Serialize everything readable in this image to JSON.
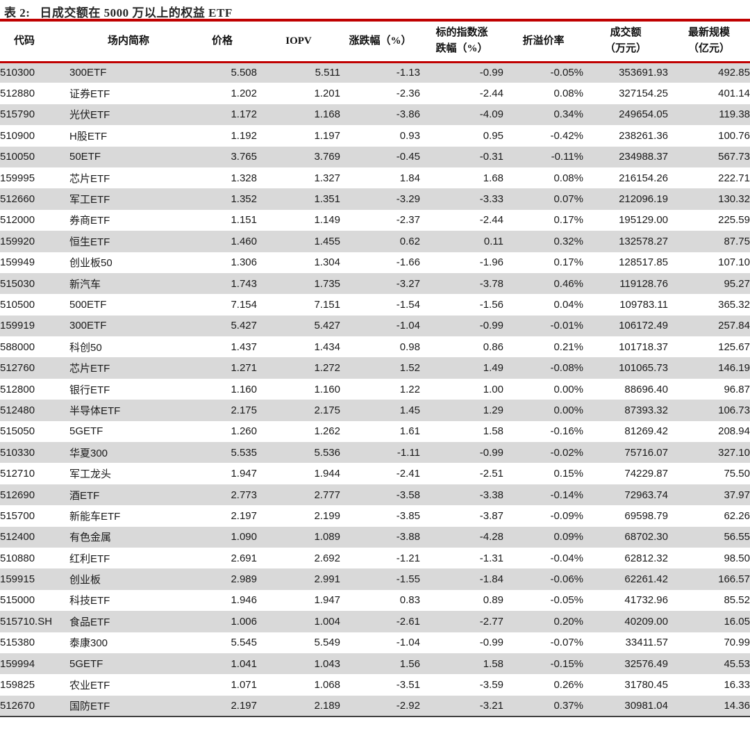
{
  "title": {
    "prefix": "表 2:",
    "text": "日成交额在 5000 万以上的权益 ETF"
  },
  "colors": {
    "accent_red": "#c00000",
    "row_stripe": "#d9d9d9",
    "bottom_rule": "#3f3f3f"
  },
  "table": {
    "columns": [
      {
        "key": "code",
        "align": "left",
        "line1": "代码",
        "line2": ""
      },
      {
        "key": "name",
        "align": "left",
        "line1": "场内简称",
        "line2": ""
      },
      {
        "key": "price",
        "align": "right",
        "line1": "价格",
        "line2": ""
      },
      {
        "key": "iopv",
        "align": "right",
        "line1": "IOPV",
        "line2": ""
      },
      {
        "key": "chg",
        "align": "right",
        "line1": "涨跌幅（%）",
        "line2": ""
      },
      {
        "key": "idx",
        "align": "right",
        "line1": "标的指数涨",
        "line2": "跌幅（%）"
      },
      {
        "key": "prem",
        "align": "right",
        "line1": "折溢价率",
        "line2": ""
      },
      {
        "key": "turn",
        "align": "right",
        "line1": "成交额",
        "line2": "（万元）"
      },
      {
        "key": "aum",
        "align": "right",
        "line1": "最新规模",
        "line2": "（亿元）"
      }
    ],
    "rows": [
      [
        "510300",
        "300ETF",
        "5.508",
        "5.511",
        "-1.13",
        "-0.99",
        "-0.05%",
        "353691.93",
        "492.85"
      ],
      [
        "512880",
        "证券ETF",
        "1.202",
        "1.201",
        "-2.36",
        "-2.44",
        "0.08%",
        "327154.25",
        "401.14"
      ],
      [
        "515790",
        "光伏ETF",
        "1.172",
        "1.168",
        "-3.86",
        "-4.09",
        "0.34%",
        "249654.05",
        "119.38"
      ],
      [
        "510900",
        "H股ETF",
        "1.192",
        "1.197",
        "0.93",
        "0.95",
        "-0.42%",
        "238261.36",
        "100.76"
      ],
      [
        "510050",
        "50ETF",
        "3.765",
        "3.769",
        "-0.45",
        "-0.31",
        "-0.11%",
        "234988.37",
        "567.73"
      ],
      [
        "159995",
        "芯片ETF",
        "1.328",
        "1.327",
        "1.84",
        "1.68",
        "0.08%",
        "216154.26",
        "222.71"
      ],
      [
        "512660",
        "军工ETF",
        "1.352",
        "1.351",
        "-3.29",
        "-3.33",
        "0.07%",
        "212096.19",
        "130.32"
      ],
      [
        "512000",
        "券商ETF",
        "1.151",
        "1.149",
        "-2.37",
        "-2.44",
        "0.17%",
        "195129.00",
        "225.59"
      ],
      [
        "159920",
        "恒生ETF",
        "1.460",
        "1.455",
        "0.62",
        "0.11",
        "0.32%",
        "132578.27",
        "87.75"
      ],
      [
        "159949",
        "创业板50",
        "1.306",
        "1.304",
        "-1.66",
        "-1.96",
        "0.17%",
        "128517.85",
        "107.10"
      ],
      [
        "515030",
        "新汽车",
        "1.743",
        "1.735",
        "-3.27",
        "-3.78",
        "0.46%",
        "119128.76",
        "95.27"
      ],
      [
        "510500",
        "500ETF",
        "7.154",
        "7.151",
        "-1.54",
        "-1.56",
        "0.04%",
        "109783.11",
        "365.32"
      ],
      [
        "159919",
        "300ETF",
        "5.427",
        "5.427",
        "-1.04",
        "-0.99",
        "-0.01%",
        "106172.49",
        "257.84"
      ],
      [
        "588000",
        "科创50",
        "1.437",
        "1.434",
        "0.98",
        "0.86",
        "0.21%",
        "101718.37",
        "125.67"
      ],
      [
        "512760",
        "芯片ETF",
        "1.271",
        "1.272",
        "1.52",
        "1.49",
        "-0.08%",
        "101065.73",
        "146.19"
      ],
      [
        "512800",
        "银行ETF",
        "1.160",
        "1.160",
        "1.22",
        "1.00",
        "0.00%",
        "88696.40",
        "96.87"
      ],
      [
        "512480",
        "半导体ETF",
        "2.175",
        "2.175",
        "1.45",
        "1.29",
        "0.00%",
        "87393.32",
        "106.73"
      ],
      [
        "515050",
        "5GETF",
        "1.260",
        "1.262",
        "1.61",
        "1.58",
        "-0.16%",
        "81269.42",
        "208.94"
      ],
      [
        "510330",
        "华夏300",
        "5.535",
        "5.536",
        "-1.11",
        "-0.99",
        "-0.02%",
        "75716.07",
        "327.10"
      ],
      [
        "512710",
        "军工龙头",
        "1.947",
        "1.944",
        "-2.41",
        "-2.51",
        "0.15%",
        "74229.87",
        "75.50"
      ],
      [
        "512690",
        "酒ETF",
        "2.773",
        "2.777",
        "-3.58",
        "-3.38",
        "-0.14%",
        "72963.74",
        "37.97"
      ],
      [
        "515700",
        "新能车ETF",
        "2.197",
        "2.199",
        "-3.85",
        "-3.87",
        "-0.09%",
        "69598.79",
        "62.26"
      ],
      [
        "512400",
        "有色金属",
        "1.090",
        "1.089",
        "-3.88",
        "-4.28",
        "0.09%",
        "68702.30",
        "56.55"
      ],
      [
        "510880",
        "红利ETF",
        "2.691",
        "2.692",
        "-1.21",
        "-1.31",
        "-0.04%",
        "62812.32",
        "98.50"
      ],
      [
        "159915",
        "创业板",
        "2.989",
        "2.991",
        "-1.55",
        "-1.84",
        "-0.06%",
        "62261.42",
        "166.57"
      ],
      [
        "515000",
        "科技ETF",
        "1.946",
        "1.947",
        "0.83",
        "0.89",
        "-0.05%",
        "41732.96",
        "85.52"
      ],
      [
        "515710.SH",
        "食品ETF",
        "1.006",
        "1.004",
        "-2.61",
        "-2.77",
        "0.20%",
        "40209.00",
        "16.05"
      ],
      [
        "515380",
        "泰康300",
        "5.545",
        "5.549",
        "-1.04",
        "-0.99",
        "-0.07%",
        "33411.57",
        "70.99"
      ],
      [
        "159994",
        "5GETF",
        "1.041",
        "1.043",
        "1.56",
        "1.58",
        "-0.15%",
        "32576.49",
        "45.53"
      ],
      [
        "159825",
        "农业ETF",
        "1.071",
        "1.068",
        "-3.51",
        "-3.59",
        "0.26%",
        "31780.45",
        "16.33"
      ],
      [
        "512670",
        "国防ETF",
        "2.197",
        "2.189",
        "-2.92",
        "-3.21",
        "0.37%",
        "30981.04",
        "14.36"
      ]
    ]
  }
}
